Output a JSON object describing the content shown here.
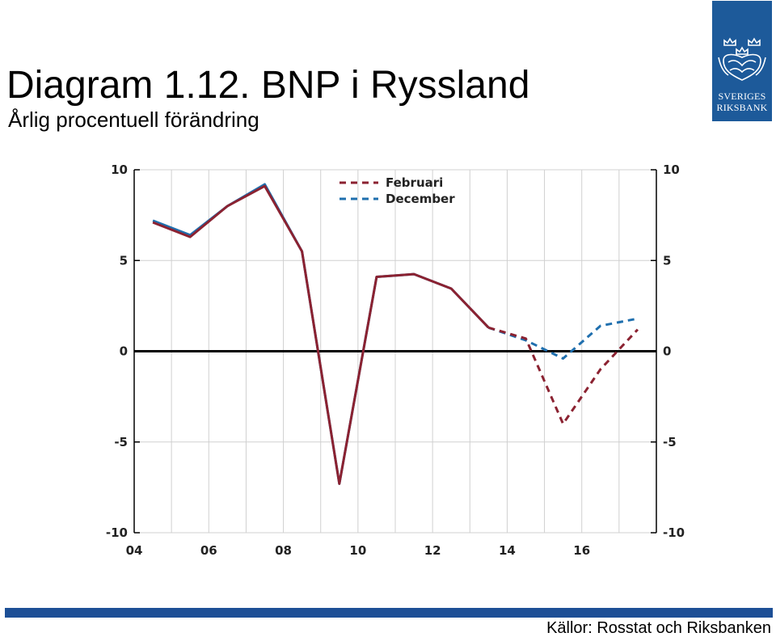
{
  "header": {
    "title": "Diagram 1.12. BNP i Ryssland",
    "subtitle": "Årlig procentuell förändring"
  },
  "logo": {
    "name": "riksbank-crest-logo",
    "line1": "SVERIGES",
    "line2": "RIKSBANK",
    "background": "#1d5a9a"
  },
  "footer": {
    "source": "Källor: Rosstat och Riksbanken",
    "bar_color": "#1d4f96"
  },
  "chart_data": {
    "type": "line",
    "title": "Diagram 1.12. BNP i Ryssland",
    "subtitle": "Årlig procentuell förändring",
    "xlabel": "",
    "ylabel": "",
    "xlim": [
      2004,
      2018
    ],
    "ylim": [
      -10,
      10
    ],
    "x_ticks": [
      2004,
      2006,
      2008,
      2010,
      2012,
      2014,
      2016
    ],
    "x_tick_labels": [
      "04",
      "06",
      "08",
      "10",
      "12",
      "14",
      "16"
    ],
    "y_ticks": [
      -10,
      -5,
      0,
      5,
      10
    ],
    "y_tick_labels": [
      "-10",
      "-5",
      "0",
      "5",
      "10"
    ],
    "y_axes": [
      "left",
      "right"
    ],
    "grid": true,
    "legend_position": "top-center",
    "series": [
      {
        "name": "Februari",
        "color": "#8b2231",
        "x": [
          2004.5,
          2005.5,
          2006.5,
          2007.5,
          2008.5,
          2009.5,
          2010.5,
          2011.5,
          2012.5,
          2013.5,
          2014.5,
          2015.5,
          2016.5,
          2017.5
        ],
        "y": [
          7.1,
          6.3,
          8.0,
          9.1,
          5.5,
          -7.3,
          4.1,
          4.25,
          3.45,
          1.3,
          0.7,
          -4.0,
          -1.0,
          1.2
        ],
        "solid_until": 2013.5
      },
      {
        "name": "December",
        "color": "#1f6fae",
        "x": [
          2004.5,
          2005.5,
          2006.5,
          2007.5,
          2008.5,
          2009.5,
          2010.5,
          2011.5,
          2012.5,
          2013.5,
          2014.5,
          2015.5,
          2016.5,
          2017.5
        ],
        "y": [
          7.2,
          6.4,
          8.0,
          9.2,
          5.5,
          -7.3,
          4.1,
          4.25,
          3.45,
          1.3,
          0.6,
          -0.4,
          1.4,
          1.8
        ],
        "solid_until": 2013.5
      }
    ]
  }
}
